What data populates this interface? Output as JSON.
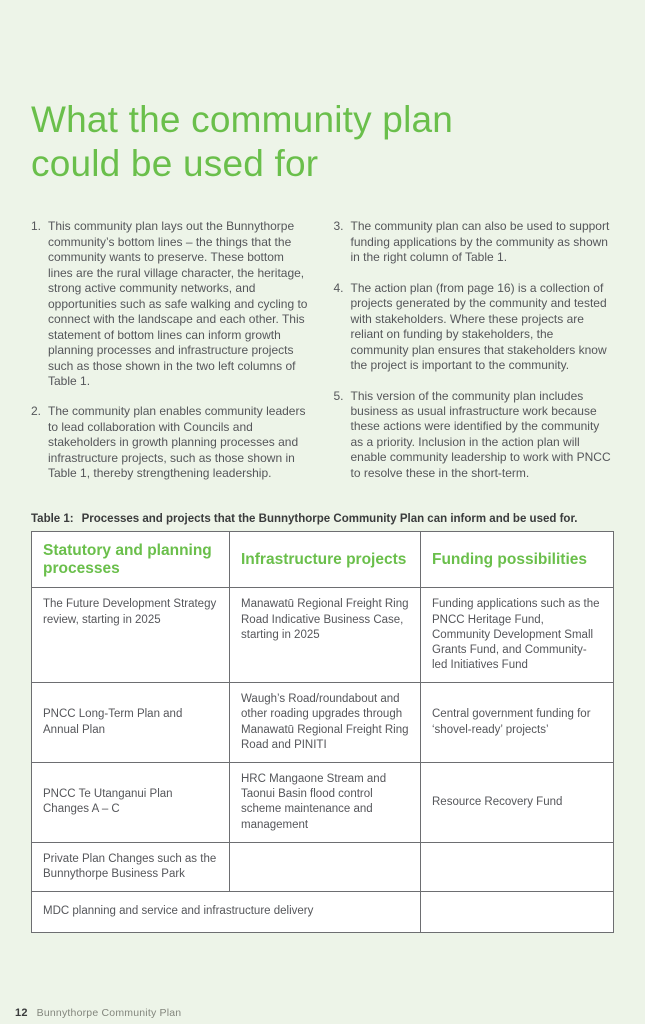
{
  "header": {
    "title_line1": "What the community plan",
    "title_line2": "could be used for"
  },
  "intro": {
    "left": [
      {
        "num": "1.",
        "text": "This community plan lays out the Bunnythorpe community’s bottom lines – the things that the community wants to preserve. These bottom lines are the rural village character, the heritage, strong active community networks, and opportunities such as safe walking and cycling to connect with the landscape and each other. This statement of bottom lines can inform growth planning processes and infrastructure projects such as those shown in the two left columns of Table 1."
      },
      {
        "num": "2.",
        "text": "The community plan enables community leaders to lead collaboration with Councils and stakeholders in growth planning processes and infrastructure projects, such as those shown in Table 1, thereby strengthening leadership."
      }
    ],
    "right": [
      {
        "num": "3.",
        "text": "The community plan can also be used to support funding applications by the community as shown in the right column of Table 1."
      },
      {
        "num": "4.",
        "text": "The action plan (from page 16) is a collection of projects generated by the community and tested with stakeholders. Where these projects are reliant on funding by stakeholders, the community plan ensures that stakeholders know the project is important to the community."
      },
      {
        "num": "5.",
        "text": "This version of the community plan includes business as usual infrastructure work because these actions were identified by the community as a priority. Inclusion in the action plan will enable community leadership to work with PNCC to resolve these in the short-term."
      }
    ]
  },
  "table": {
    "caption_label": "Table 1:",
    "caption_text": "Processes and projects that the Bunnythorpe Community Plan can inform and be used for.",
    "headers": [
      "Statutory and planning processes",
      "Infrastructure projects",
      "Funding possibilities"
    ],
    "rows": [
      {
        "c1": "The Future Development Strategy review, starting in 2025",
        "c2": "Manawatū Regional Freight Ring Road Indicative Business Case, starting in 2025",
        "c3": "Funding applications such as the PNCC Heritage Fund, Community Development Small Grants Fund, and Community-led Initiatives Fund"
      },
      {
        "c1": "PNCC Long-Term Plan and Annual Plan",
        "c2": "Waugh’s Road/roundabout and other roading upgrades through Manawatū Regional Freight Ring Road and PINITI",
        "c3": "Central government funding for ‘shovel-ready’ projects’"
      },
      {
        "c1": "PNCC Te Utanganui Plan Changes A – C",
        "c2": "HRC Mangaone Stream and Taonui Basin flood control scheme maintenance and management",
        "c3": "Resource Recovery Fund"
      },
      {
        "c1": "Private Plan Changes such as the Bunnythorpe Business Park",
        "c2": "",
        "c3": ""
      },
      {
        "merged": "MDC planning and service and infrastructure delivery",
        "c3": ""
      }
    ]
  },
  "footer": {
    "page_number": "12",
    "doc_title": "Bunnythorpe Community Plan"
  },
  "colors": {
    "accent_green": "#6abf4b",
    "page_background": "#edf4e8",
    "body_text": "#55565a",
    "table_border": "#6d6e71"
  }
}
